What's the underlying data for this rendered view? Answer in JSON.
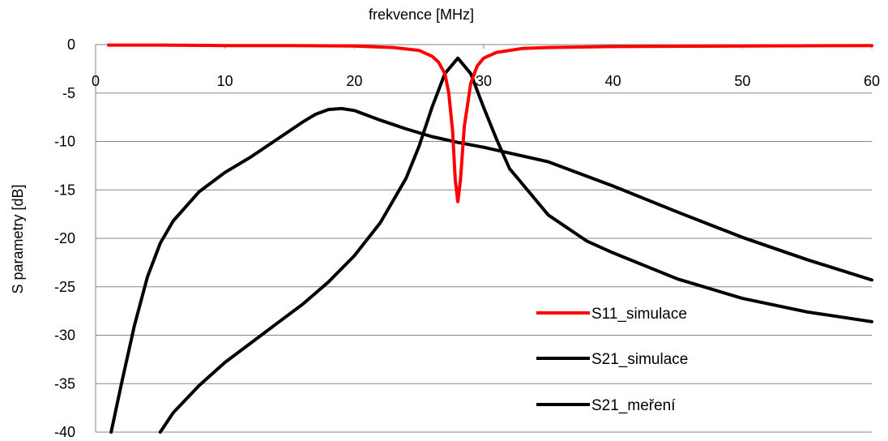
{
  "chart_data": {
    "type": "line",
    "title": "",
    "xlabel": "frekvence [MHz]",
    "ylabel": "S parametry [dB]",
    "xlim": [
      0,
      60
    ],
    "ylim": [
      -40,
      0
    ],
    "x_ticks": [
      "0",
      "10",
      "20",
      "30",
      "40",
      "50",
      "60"
    ],
    "y_ticks": [
      "0",
      "-5",
      "-10",
      "-15",
      "-20",
      "-25",
      "-30",
      "-35",
      "-40"
    ],
    "x_axis_position": "top",
    "grid": "horizontal",
    "legend_position": "bottom-right",
    "series": [
      {
        "name": "S11_simulace",
        "color": "#ff0000",
        "x": [
          1,
          5,
          10,
          15,
          20,
          23,
          25,
          26,
          26.5,
          27,
          27.3,
          27.6,
          27.8,
          28,
          28.2,
          28.5,
          29,
          29.5,
          30,
          31,
          33,
          35,
          40,
          50,
          60
        ],
        "y": [
          -0.05,
          -0.05,
          -0.1,
          -0.1,
          -0.15,
          -0.3,
          -0.6,
          -1.2,
          -1.8,
          -3,
          -5,
          -9,
          -14,
          -16.2,
          -14,
          -8.5,
          -4,
          -2.2,
          -1.4,
          -0.8,
          -0.4,
          -0.3,
          -0.2,
          -0.15,
          -0.1
        ]
      },
      {
        "name": "S21_simulace",
        "color": "#000000",
        "x": [
          1.2,
          2,
          3,
          4,
          5,
          6,
          8,
          10,
          12,
          14,
          16,
          17,
          18,
          19,
          20,
          22,
          24,
          26,
          28,
          30,
          32,
          35,
          40,
          45,
          50,
          55,
          60
        ],
        "y": [
          -40,
          -35,
          -29,
          -24,
          -20.5,
          -18.2,
          -15.2,
          -13.2,
          -11.6,
          -9.8,
          -8.0,
          -7.2,
          -6.7,
          -6.6,
          -6.8,
          -7.8,
          -8.7,
          -9.5,
          -10.1,
          -10.6,
          -11.2,
          -12.1,
          -14.6,
          -17.3,
          -19.9,
          -22.2,
          -24.3
        ]
      },
      {
        "name": "S21_meření",
        "color": "#000000",
        "x": [
          5,
          6,
          8,
          10,
          12,
          14,
          16,
          18,
          20,
          22,
          24,
          25,
          26,
          27,
          28,
          29,
          30,
          31,
          32,
          35,
          38,
          40,
          45,
          50,
          55,
          60
        ],
        "y": [
          -40,
          -38,
          -35.2,
          -32.8,
          -30.8,
          -28.8,
          -26.8,
          -24.5,
          -21.8,
          -18.4,
          -13.8,
          -10.5,
          -6.5,
          -3,
          -1.4,
          -3,
          -6.5,
          -9.8,
          -12.8,
          -17.6,
          -20.3,
          -21.5,
          -24.2,
          -26.2,
          -27.6,
          -28.6
        ]
      }
    ]
  }
}
